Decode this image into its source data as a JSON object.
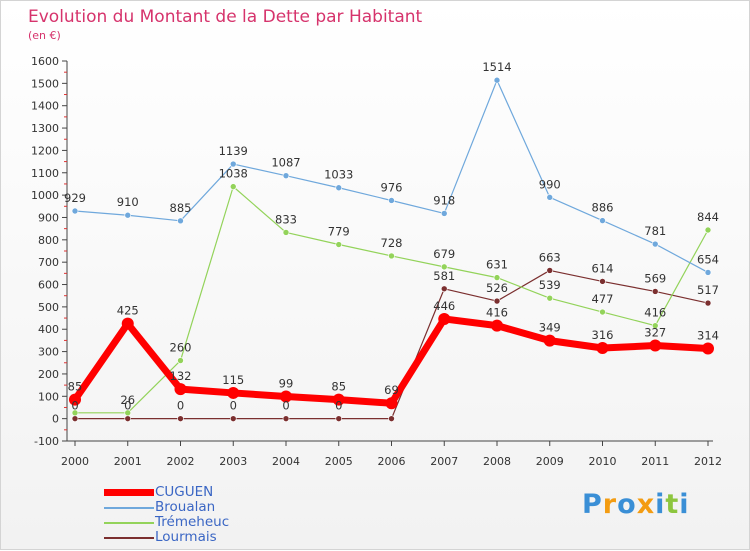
{
  "title": "Evolution du Montant de la Dette par Habitant",
  "subtitle": "(en €)",
  "brand": {
    "text": "Proxiti",
    "letters": [
      {
        "ch": "P",
        "color": "#3a8fd6"
      },
      {
        "ch": "r",
        "color": "#f39c12"
      },
      {
        "ch": "o",
        "color": "#3a8fd6"
      },
      {
        "ch": "x",
        "color": "#f39c12"
      },
      {
        "ch": "i",
        "color": "#3a8fd6"
      },
      {
        "ch": "t",
        "color": "#8dc63f"
      },
      {
        "ch": "i",
        "color": "#3a8fd6"
      }
    ]
  },
  "chart_data": {
    "type": "line",
    "title": "Evolution du Montant de la Dette par Habitant",
    "subtitle": "(en €)",
    "xlabel": "",
    "ylabel": "",
    "x": [
      "2000",
      "2001",
      "2002",
      "2003",
      "2004",
      "2005",
      "2006",
      "2007",
      "2008",
      "2009",
      "2010",
      "2011",
      "2012"
    ],
    "ylim": [
      -100,
      1600
    ],
    "yticks": [
      -100,
      0,
      100,
      200,
      300,
      400,
      500,
      600,
      700,
      800,
      900,
      1000,
      1100,
      1200,
      1300,
      1400,
      1500,
      1600
    ],
    "grid": false,
    "legend_position": "bottom-left",
    "series": [
      {
        "name": "CUGUEN",
        "color": "#ff0000",
        "width": 7,
        "label_color": "#333333",
        "values": [
          85,
          425,
          132,
          115,
          99,
          85,
          69,
          446,
          416,
          349,
          316,
          327,
          314
        ]
      },
      {
        "name": "Broualan",
        "color": "#6fa8dc",
        "width": 1.2,
        "label_color": "#333333",
        "values": [
          929,
          910,
          885,
          1139,
          1087,
          1033,
          976,
          918,
          1514,
          990,
          886,
          781,
          654
        ]
      },
      {
        "name": "Trémeheuc",
        "color": "#93d35a",
        "width": 1.2,
        "label_color": "#333333",
        "values": [
          26,
          26,
          260,
          1038,
          833,
          779,
          728,
          679,
          631,
          539,
          477,
          416,
          844
        ]
      },
      {
        "name": "Lourmais",
        "color": "#7b2f2f",
        "width": 1.2,
        "label_color": "#333333",
        "values": [
          0,
          0,
          0,
          0,
          0,
          0,
          0,
          581,
          526,
          663,
          614,
          569,
          517
        ]
      }
    ],
    "data_labels": [
      {
        "series": 0,
        "labels": [
          "85",
          "425",
          "132",
          "115",
          "99",
          "85",
          "69",
          "446",
          "416",
          "349",
          "316",
          "327",
          "314"
        ]
      },
      {
        "series": 1,
        "labels": [
          "929",
          "910",
          "885",
          "1139",
          "1087",
          "1033",
          "976",
          "918",
          "1514",
          "990",
          "886",
          "781",
          "654"
        ]
      },
      {
        "series": 2,
        "labels": [
          "",
          "26",
          "260",
          "1038",
          "833",
          "779",
          "728",
          "679",
          "631",
          "539",
          "477",
          "416",
          "844"
        ]
      },
      {
        "series": 3,
        "labels": [
          "0",
          "0",
          "0",
          "0",
          "0",
          "0",
          "",
          "581",
          "526",
          "663",
          "614",
          "569",
          "517"
        ]
      }
    ]
  }
}
